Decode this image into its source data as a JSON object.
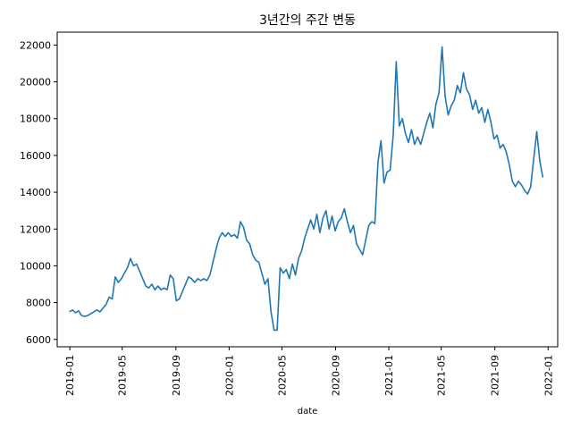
{
  "chart_data": {
    "type": "line",
    "title": "3년간의 주간 변동",
    "xlabel": "date",
    "ylabel": "",
    "ylim": [
      5600,
      22700
    ],
    "xlim": [
      "2018-12-03",
      "2022-01-23"
    ],
    "x_ticks": [
      "2019-01",
      "2019-05",
      "2019-09",
      "2020-01",
      "2020-05",
      "2020-09",
      "2021-01",
      "2021-05",
      "2021-09",
      "2022-01"
    ],
    "y_ticks": [
      6000,
      8000,
      10000,
      12000,
      14000,
      16000,
      18000,
      20000,
      22000
    ],
    "grid": false,
    "series": [
      {
        "color": "#1f77b4",
        "points": [
          [
            "2018-12-31",
            7500
          ],
          [
            "2019-01-07",
            7600
          ],
          [
            "2019-01-14",
            7450
          ],
          [
            "2019-01-21",
            7550
          ],
          [
            "2019-01-28",
            7300
          ],
          [
            "2019-02-04",
            7250
          ],
          [
            "2019-02-11",
            7300
          ],
          [
            "2019-02-18",
            7400
          ],
          [
            "2019-02-25",
            7500
          ],
          [
            "2019-03-04",
            7600
          ],
          [
            "2019-03-11",
            7500
          ],
          [
            "2019-03-18",
            7700
          ],
          [
            "2019-03-25",
            7900
          ],
          [
            "2019-04-01",
            8300
          ],
          [
            "2019-04-08",
            8200
          ],
          [
            "2019-04-15",
            9400
          ],
          [
            "2019-04-22",
            9100
          ],
          [
            "2019-04-29",
            9300
          ],
          [
            "2019-05-06",
            9600
          ],
          [
            "2019-05-13",
            9900
          ],
          [
            "2019-05-20",
            10400
          ],
          [
            "2019-05-27",
            10000
          ],
          [
            "2019-06-03",
            10100
          ],
          [
            "2019-06-10",
            9700
          ],
          [
            "2019-06-17",
            9300
          ],
          [
            "2019-06-24",
            8900
          ],
          [
            "2019-07-01",
            8800
          ],
          [
            "2019-07-08",
            9000
          ],
          [
            "2019-07-15",
            8700
          ],
          [
            "2019-07-22",
            8900
          ],
          [
            "2019-07-29",
            8700
          ],
          [
            "2019-08-05",
            8800
          ],
          [
            "2019-08-12",
            8700
          ],
          [
            "2019-08-19",
            9500
          ],
          [
            "2019-08-26",
            9300
          ],
          [
            "2019-09-02",
            8100
          ],
          [
            "2019-09-09",
            8200
          ],
          [
            "2019-09-16",
            8600
          ],
          [
            "2019-09-23",
            9000
          ],
          [
            "2019-09-30",
            9400
          ],
          [
            "2019-10-07",
            9300
          ],
          [
            "2019-10-14",
            9100
          ],
          [
            "2019-10-21",
            9300
          ],
          [
            "2019-10-28",
            9200
          ],
          [
            "2019-11-04",
            9300
          ],
          [
            "2019-11-11",
            9200
          ],
          [
            "2019-11-18",
            9500
          ],
          [
            "2019-11-25",
            10200
          ],
          [
            "2019-12-02",
            10900
          ],
          [
            "2019-12-09",
            11500
          ],
          [
            "2019-12-16",
            11800
          ],
          [
            "2019-12-23",
            11600
          ],
          [
            "2019-12-30",
            11800
          ],
          [
            "2020-01-06",
            11600
          ],
          [
            "2020-01-13",
            11700
          ],
          [
            "2020-01-20",
            11500
          ],
          [
            "2020-01-27",
            12400
          ],
          [
            "2020-02-03",
            12100
          ],
          [
            "2020-02-10",
            11400
          ],
          [
            "2020-02-17",
            11200
          ],
          [
            "2020-02-24",
            10600
          ],
          [
            "2020-03-02",
            10300
          ],
          [
            "2020-03-09",
            10200
          ],
          [
            "2020-03-16",
            9600
          ],
          [
            "2020-03-23",
            9000
          ],
          [
            "2020-03-30",
            9300
          ],
          [
            "2020-04-06",
            7500
          ],
          [
            "2020-04-13",
            6500
          ],
          [
            "2020-04-20",
            6500
          ],
          [
            "2020-04-27",
            9900
          ],
          [
            "2020-05-04",
            9600
          ],
          [
            "2020-05-11",
            9800
          ],
          [
            "2020-05-18",
            9300
          ],
          [
            "2020-05-25",
            10100
          ],
          [
            "2020-06-01",
            9500
          ],
          [
            "2020-06-08",
            10400
          ],
          [
            "2020-06-15",
            10800
          ],
          [
            "2020-06-22",
            11500
          ],
          [
            "2020-06-29",
            12000
          ],
          [
            "2020-07-06",
            12500
          ],
          [
            "2020-07-13",
            12000
          ],
          [
            "2020-07-20",
            12800
          ],
          [
            "2020-07-27",
            11800
          ],
          [
            "2020-08-03",
            12600
          ],
          [
            "2020-08-10",
            13000
          ],
          [
            "2020-08-17",
            12000
          ],
          [
            "2020-08-24",
            12700
          ],
          [
            "2020-08-31",
            11900
          ],
          [
            "2020-09-07",
            12400
          ],
          [
            "2020-09-14",
            12600
          ],
          [
            "2020-09-21",
            13100
          ],
          [
            "2020-09-28",
            12400
          ],
          [
            "2020-10-05",
            11800
          ],
          [
            "2020-10-12",
            12200
          ],
          [
            "2020-10-19",
            11200
          ],
          [
            "2020-10-26",
            10900
          ],
          [
            "2020-11-02",
            10600
          ],
          [
            "2020-11-09",
            11400
          ],
          [
            "2020-11-16",
            12200
          ],
          [
            "2020-11-23",
            12400
          ],
          [
            "2020-11-30",
            12300
          ],
          [
            "2020-12-07",
            15600
          ],
          [
            "2020-12-14",
            16800
          ],
          [
            "2020-12-21",
            14500
          ],
          [
            "2020-12-28",
            15100
          ],
          [
            "2021-01-04",
            15200
          ],
          [
            "2021-01-11",
            17100
          ],
          [
            "2021-01-18",
            21100
          ],
          [
            "2021-01-25",
            17600
          ],
          [
            "2021-02-01",
            18000
          ],
          [
            "2021-02-08",
            17200
          ],
          [
            "2021-02-15",
            16700
          ],
          [
            "2021-02-22",
            17400
          ],
          [
            "2021-03-01",
            16600
          ],
          [
            "2021-03-08",
            17000
          ],
          [
            "2021-03-15",
            16600
          ],
          [
            "2021-03-22",
            17200
          ],
          [
            "2021-03-29",
            17800
          ],
          [
            "2021-04-05",
            18300
          ],
          [
            "2021-04-12",
            17500
          ],
          [
            "2021-04-19",
            18800
          ],
          [
            "2021-04-26",
            19400
          ],
          [
            "2021-05-03",
            21900
          ],
          [
            "2021-05-10",
            19200
          ],
          [
            "2021-05-17",
            18200
          ],
          [
            "2021-05-24",
            18700
          ],
          [
            "2021-05-31",
            19000
          ],
          [
            "2021-06-07",
            19800
          ],
          [
            "2021-06-14",
            19400
          ],
          [
            "2021-06-21",
            20500
          ],
          [
            "2021-06-28",
            19600
          ],
          [
            "2021-07-05",
            19300
          ],
          [
            "2021-07-12",
            18500
          ],
          [
            "2021-07-19",
            19000
          ],
          [
            "2021-07-26",
            18300
          ],
          [
            "2021-08-02",
            18600
          ],
          [
            "2021-08-09",
            17800
          ],
          [
            "2021-08-16",
            18500
          ],
          [
            "2021-08-23",
            17800
          ],
          [
            "2021-08-30",
            16900
          ],
          [
            "2021-09-06",
            17100
          ],
          [
            "2021-09-13",
            16400
          ],
          [
            "2021-09-20",
            16600
          ],
          [
            "2021-09-27",
            16200
          ],
          [
            "2021-10-04",
            15500
          ],
          [
            "2021-10-11",
            14600
          ],
          [
            "2021-10-18",
            14300
          ],
          [
            "2021-10-25",
            14600
          ],
          [
            "2021-11-01",
            14400
          ],
          [
            "2021-11-08",
            14100
          ],
          [
            "2021-11-15",
            13900
          ],
          [
            "2021-11-22",
            14300
          ],
          [
            "2021-11-29",
            15800
          ],
          [
            "2021-12-06",
            17300
          ],
          [
            "2021-12-13",
            15700
          ],
          [
            "2021-12-20",
            14800
          ]
        ]
      }
    ]
  }
}
